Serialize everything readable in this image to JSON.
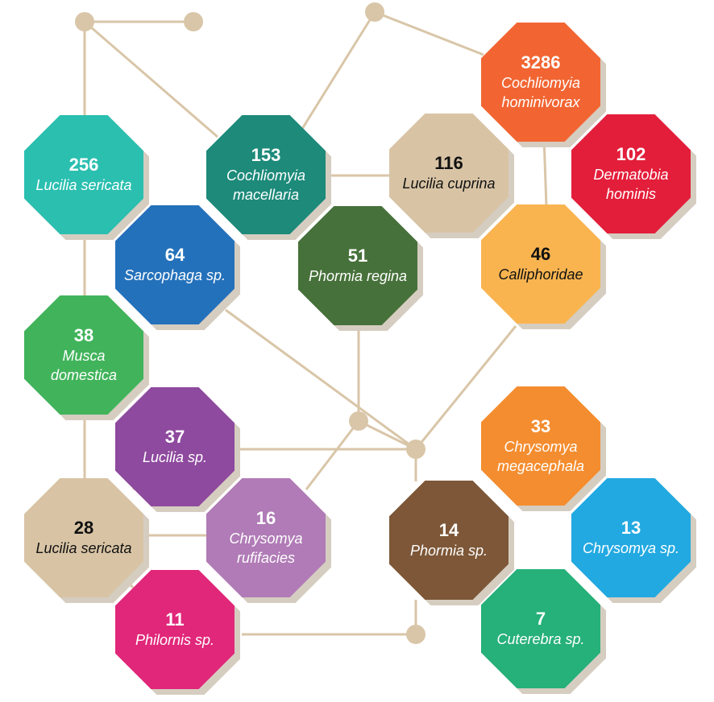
{
  "colors": {
    "line": "#d9c6a8",
    "dot": "#d9c6a8"
  },
  "taxa": [
    {
      "id": "t1",
      "count": "256",
      "name": "Lucilia sericata",
      "color": "#2bbfb0",
      "text": "dark"
    },
    {
      "id": "t2",
      "count": "153",
      "name": "Cochliomyia macellaria",
      "color": "#1d8a7a",
      "text": "dark"
    },
    {
      "id": "t3",
      "count": "116",
      "name": "Lucilia cuprina",
      "color": "#d8c4a5",
      "text": "light"
    },
    {
      "id": "t4",
      "count": "3286",
      "name": "Cochliomyia hominivorax",
      "color": "#f26532",
      "text": "dark"
    },
    {
      "id": "t5",
      "count": "102",
      "name": "Dermatobia hominis",
      "color": "#e31e3a",
      "text": "dark"
    },
    {
      "id": "t6",
      "count": "64",
      "name": "Sarcophaga sp.",
      "color": "#2471bb",
      "text": "dark"
    },
    {
      "id": "t7",
      "count": "51",
      "name": "Phormia regina",
      "color": "#47713a",
      "text": "dark"
    },
    {
      "id": "t8",
      "count": "46",
      "name": "Calliphoridae",
      "color": "#f9b450",
      "text": "light"
    },
    {
      "id": "t9",
      "count": "38",
      "name": "Musca domestica",
      "color": "#41b45b",
      "text": "dark"
    },
    {
      "id": "t10",
      "count": "37",
      "name": "Lucilia sp.",
      "color": "#8e4a9e",
      "text": "dark"
    },
    {
      "id": "t11",
      "count": "33",
      "name": "Chrysomya megacephala",
      "color": "#f48d2f",
      "text": "dark"
    },
    {
      "id": "t12",
      "count": "28",
      "name": "Lucilia sericata",
      "color": "#d8c4a5",
      "text": "light"
    },
    {
      "id": "t13",
      "count": "16",
      "name": "Chrysomya rufifacies",
      "color": "#b07bb6",
      "text": "dark"
    },
    {
      "id": "t14",
      "count": "14",
      "name": "Phormia sp.",
      "color": "#7d5737",
      "text": "dark"
    },
    {
      "id": "t15",
      "count": "13",
      "name": "Chrysomya sp.",
      "color": "#22a9e1",
      "text": "dark"
    },
    {
      "id": "t16",
      "count": "11",
      "name": "Philornis sp.",
      "color": "#e1277a",
      "text": "dark"
    },
    {
      "id": "t17",
      "count": "7",
      "name": "Cuterebra sp.",
      "color": "#26b07a",
      "text": "dark"
    }
  ]
}
